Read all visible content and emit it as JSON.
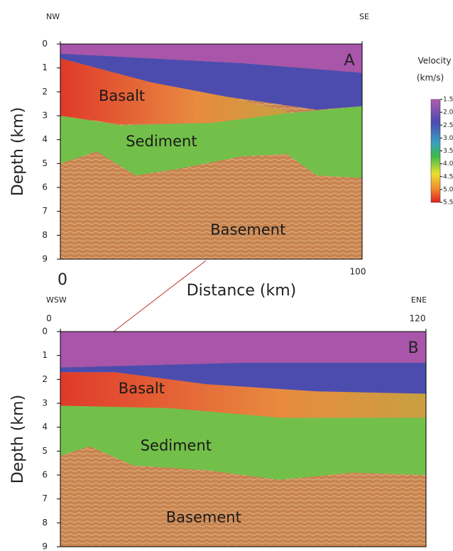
{
  "chart_data": [
    {
      "type": "section",
      "panel": "A",
      "left_label": "NW",
      "right_label": "SE",
      "ylabel": "Depth (km)",
      "xlabel": "Distance (km)",
      "ylim": [
        0,
        9
      ],
      "yticks": [
        0,
        1,
        2,
        3,
        4,
        5,
        6,
        7,
        8,
        9
      ],
      "xlim": [
        0,
        100
      ],
      "xticks": [
        0,
        100
      ],
      "annotations": [
        "Basalt",
        "Sediment",
        "Basement"
      ]
    },
    {
      "type": "section",
      "panel": "B",
      "left_label": "WSW",
      "right_label": "ENE",
      "ylabel": "Depth (km)",
      "ylim": [
        0,
        9
      ],
      "yticks": [
        0,
        1,
        2,
        3,
        4,
        5,
        6,
        7,
        8,
        9
      ],
      "xlim": [
        0,
        120
      ],
      "xticks": [
        0,
        120
      ],
      "annotations": [
        "Basalt",
        "Sediment",
        "Basement"
      ]
    }
  ],
  "colorbar": {
    "title": "Velocity",
    "unit": "(km/s)",
    "lim": [
      1.5,
      5.5
    ],
    "ticks": [
      1.5,
      {
        "value": 2,
        "label": "2.0"
      },
      2.5,
      {
        "value": 3,
        "label": "3.0"
      },
      3.5,
      {
        "value": 4,
        "label": "4.0"
      },
      4.5,
      {
        "value": 5,
        "label": "5.0"
      },
      5.5
    ]
  }
}
